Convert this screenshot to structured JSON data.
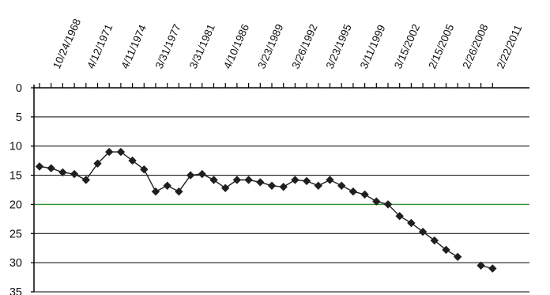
{
  "chart_data": {
    "type": "line",
    "title": "",
    "xlabel": "",
    "ylabel": "",
    "x_tick_labels": [
      "10/24/1968",
      "4/12/1971",
      "4/11/1974",
      "3/31/1977",
      "3/31/1981",
      "4/10/1986",
      "3/23/1989",
      "3/26/1992",
      "3/23/1995",
      "3/11/1999",
      "3/15/2002",
      "2/15/2005",
      "2/26/2008",
      "2/22/2011"
    ],
    "y_ticks": [
      0,
      5,
      10,
      15,
      20,
      25,
      30,
      35
    ],
    "ylim": [
      0,
      35
    ],
    "y_axis_inverted": true,
    "grid": "horizontal",
    "reference_line": {
      "value": 20,
      "color": "#2e8b2e"
    },
    "colors": {
      "series": "#1f1f1f",
      "grid": "#000000"
    },
    "series": [
      {
        "marker": "diamond",
        "values": [
          13.5,
          13.8,
          14.5,
          14.8,
          15.8,
          13.0,
          11.0,
          11.0,
          12.5,
          14.0,
          17.8,
          16.8,
          17.8,
          15.0,
          14.8,
          15.8,
          17.2,
          15.8,
          15.8,
          16.2,
          16.8,
          17.0,
          15.8,
          16.0,
          16.8,
          15.8,
          16.8,
          17.8,
          18.3,
          19.5,
          20.0,
          22.0,
          23.2,
          24.7,
          26.2,
          27.8,
          29.0,
          null,
          30.5,
          31.0
        ]
      }
    ]
  }
}
